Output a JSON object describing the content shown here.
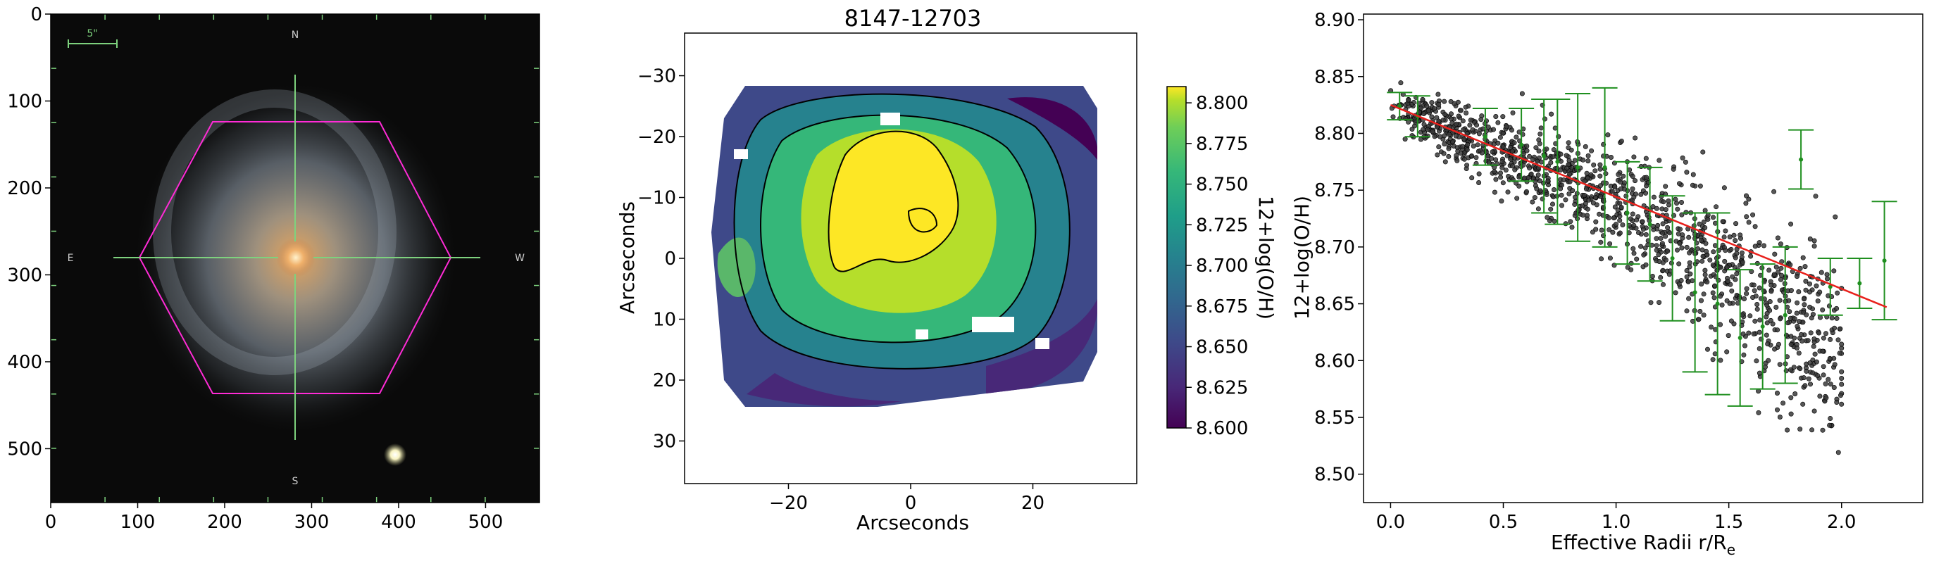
{
  "chart_data": [
    {
      "type": "image",
      "x_ticks": [
        0,
        100,
        200,
        300,
        400,
        500
      ],
      "y_ticks": [
        0,
        100,
        200,
        300,
        400,
        500
      ],
      "xlim": [
        0,
        562
      ],
      "ylim": [
        562,
        0
      ],
      "y_inverted": true,
      "compass": {
        "north": "N",
        "south": "S",
        "east": "E",
        "west": "W"
      },
      "scale_bar_label": "5\"",
      "hexagon_color": "#ff2bd6",
      "crosshair_color": "#7ed27e",
      "galaxy_center": [
        282,
        280
      ]
    },
    {
      "type": "heatmap",
      "title": "8147-12703",
      "xlabel": "Arcseconds",
      "ylabel": "Arcseconds",
      "x_ticks": [
        -20,
        0,
        20
      ],
      "y_ticks": [
        -30,
        -20,
        -10,
        0,
        10,
        20,
        30
      ],
      "xlim": [
        -37,
        37
      ],
      "ylim": [
        37,
        -37
      ],
      "colormap": "viridis",
      "colorbar_label": "12+log(O/H)",
      "colorbar_ticks": [
        "8.800",
        "8.775",
        "8.750",
        "8.725",
        "8.700",
        "8.675",
        "8.650",
        "8.625",
        "8.600"
      ],
      "colorbar_range": [
        8.6,
        8.81
      ]
    },
    {
      "type": "scatter",
      "xlabel": "Effective Radii r/R",
      "xlabel_sub": "e",
      "ylabel": "12+log(O/H)",
      "x_ticks": [
        "0.0",
        "0.5",
        "1.0",
        "1.5",
        "2.0"
      ],
      "y_ticks": [
        "8.50",
        "8.55",
        "8.60",
        "8.65",
        "8.70",
        "8.75",
        "8.80",
        "8.85",
        "8.90"
      ],
      "xlim": [
        -0.12,
        2.36
      ],
      "ylim": [
        8.475,
        8.905
      ],
      "fit_line": {
        "x": [
          0.0,
          2.2
        ],
        "y": [
          8.825,
          8.647
        ],
        "color": "#e8201b"
      },
      "point_color": "#3a3a3a",
      "errorbar_color": "#1f8f1f",
      "errorbars": [
        {
          "x": 0.04,
          "y": 8.824,
          "yerr": 0.012
        },
        {
          "x": 0.12,
          "y": 8.815,
          "yerr": 0.018
        },
        {
          "x": 0.42,
          "y": 8.797,
          "yerr": 0.025
        },
        {
          "x": 0.58,
          "y": 8.79,
          "yerr": 0.032
        },
        {
          "x": 0.68,
          "y": 8.78,
          "yerr": 0.05
        },
        {
          "x": 0.74,
          "y": 8.775,
          "yerr": 0.055
        },
        {
          "x": 0.83,
          "y": 8.77,
          "yerr": 0.065
        },
        {
          "x": 0.95,
          "y": 8.77,
          "yerr": 0.07
        },
        {
          "x": 1.05,
          "y": 8.73,
          "yerr": 0.045
        },
        {
          "x": 1.15,
          "y": 8.72,
          "yerr": 0.05
        },
        {
          "x": 1.25,
          "y": 8.69,
          "yerr": 0.055
        },
        {
          "x": 1.35,
          "y": 8.66,
          "yerr": 0.07
        },
        {
          "x": 1.45,
          "y": 8.65,
          "yerr": 0.08
        },
        {
          "x": 1.55,
          "y": 8.62,
          "yerr": 0.06
        },
        {
          "x": 1.65,
          "y": 8.63,
          "yerr": 0.055
        },
        {
          "x": 1.75,
          "y": 8.64,
          "yerr": 0.06
        },
        {
          "x": 1.82,
          "y": 8.777,
          "yerr": 0.026
        },
        {
          "x": 1.95,
          "y": 8.665,
          "yerr": 0.025
        },
        {
          "x": 2.08,
          "y": 8.668,
          "yerr": 0.022
        },
        {
          "x": 2.19,
          "y": 8.688,
          "yerr": 0.052
        }
      ]
    }
  ]
}
